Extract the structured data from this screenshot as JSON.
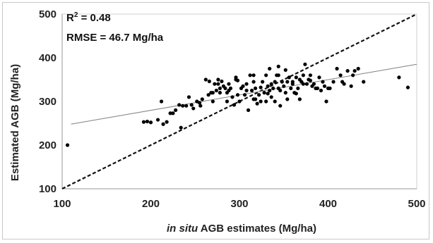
{
  "chart_data": {
    "type": "scatter",
    "xlabel_italic": "in situ",
    "xlabel_rest": " AGB estimates (Mg/ha)",
    "ylabel": "Estimated AGB (Mg/ha)",
    "xlim": [
      100,
      500
    ],
    "ylim": [
      100,
      500
    ],
    "xticks": [
      100,
      200,
      300,
      400,
      500
    ],
    "yticks": [
      100,
      200,
      300,
      400,
      500
    ],
    "annotations": {
      "r2_prefix": "R",
      "r2_sup": "2",
      "r2_value": " = 0.48",
      "rmse": "RMSE = 46.7 Mg/ha"
    },
    "one_to_one_line": {
      "x": [
        100,
        500
      ],
      "y": [
        100,
        500
      ],
      "style": "dashed"
    },
    "regression_line": {
      "x": [
        110,
        500
      ],
      "y": [
        248,
        385
      ],
      "style": "solid"
    },
    "points": [
      [
        106,
        200
      ],
      [
        192,
        253
      ],
      [
        196,
        254
      ],
      [
        200,
        252
      ],
      [
        208,
        258
      ],
      [
        212,
        300
      ],
      [
        214,
        248
      ],
      [
        218,
        253
      ],
      [
        222,
        273
      ],
      [
        225,
        273
      ],
      [
        228,
        280
      ],
      [
        232,
        292
      ],
      [
        234,
        240
      ],
      [
        236,
        290
      ],
      [
        240,
        290
      ],
      [
        243,
        310
      ],
      [
        246,
        292
      ],
      [
        248,
        284
      ],
      [
        252,
        300
      ],
      [
        255,
        297
      ],
      [
        258,
        305
      ],
      [
        262,
        350
      ],
      [
        265,
        315
      ],
      [
        268,
        320
      ],
      [
        270,
        300
      ],
      [
        272,
        340
      ],
      [
        274,
        325
      ],
      [
        276,
        350
      ],
      [
        278,
        320
      ],
      [
        280,
        346
      ],
      [
        282,
        335
      ],
      [
        284,
        330
      ],
      [
        286,
        300
      ],
      [
        288,
        325
      ],
      [
        290,
        330
      ],
      [
        292,
        310
      ],
      [
        294,
        292
      ],
      [
        296,
        355
      ],
      [
        298,
        315
      ],
      [
        300,
        300
      ],
      [
        302,
        330
      ],
      [
        304,
        335
      ],
      [
        306,
        315
      ],
      [
        308,
        340
      ],
      [
        310,
        280
      ],
      [
        312,
        360
      ],
      [
        314,
        325
      ],
      [
        316,
        305
      ],
      [
        318,
        330
      ],
      [
        320,
        295
      ],
      [
        322,
        315
      ],
      [
        324,
        300
      ],
      [
        326,
        345
      ],
      [
        328,
        320
      ],
      [
        330,
        300
      ],
      [
        332,
        335
      ],
      [
        334,
        325
      ],
      [
        336,
        310
      ],
      [
        338,
        330
      ],
      [
        340,
        300
      ],
      [
        342,
        360
      ],
      [
        344,
        330
      ],
      [
        346,
        290
      ],
      [
        348,
        345
      ],
      [
        350,
        335
      ],
      [
        352,
        320
      ],
      [
        354,
        345
      ],
      [
        356,
        355
      ],
      [
        358,
        330
      ],
      [
        360,
        340
      ],
      [
        362,
        320
      ],
      [
        364,
        355
      ],
      [
        366,
        330
      ],
      [
        368,
        305
      ],
      [
        370,
        345
      ],
      [
        372,
        360
      ],
      [
        374,
        385
      ],
      [
        376,
        340
      ],
      [
        378,
        350
      ],
      [
        380,
        360
      ],
      [
        382,
        335
      ],
      [
        384,
        340
      ],
      [
        386,
        330
      ],
      [
        388,
        330
      ],
      [
        390,
        355
      ],
      [
        392,
        325
      ],
      [
        394,
        345
      ],
      [
        396,
        335
      ],
      [
        398,
        300
      ],
      [
        402,
        330
      ],
      [
        406,
        345
      ],
      [
        410,
        375
      ],
      [
        414,
        360
      ],
      [
        418,
        340
      ],
      [
        422,
        370
      ],
      [
        426,
        335
      ],
      [
        430,
        370
      ],
      [
        434,
        375
      ],
      [
        440,
        345
      ],
      [
        480,
        355
      ],
      [
        490,
        332
      ],
      [
        330,
        360
      ],
      [
        336,
        340
      ],
      [
        344,
        360
      ],
      [
        352,
        372
      ],
      [
        360,
        345
      ],
      [
        368,
        350
      ],
      [
        340,
        345
      ],
      [
        324,
        332
      ],
      [
        316,
        345
      ],
      [
        296,
        350
      ],
      [
        286,
        320
      ],
      [
        276,
        340
      ],
      [
        266,
        346
      ],
      [
        256,
        290
      ],
      [
        316,
        360
      ],
      [
        332,
        318
      ],
      [
        346,
        325
      ],
      [
        354,
        305
      ],
      [
        380,
        348
      ],
      [
        400,
        330
      ],
      [
        416,
        345
      ],
      [
        428,
        360
      ],
      [
        364,
        318
      ],
      [
        372,
        340
      ],
      [
        334,
        375
      ],
      [
        344,
        380
      ],
      [
        318,
        305
      ],
      [
        308,
        325
      ],
      [
        298,
        348
      ],
      [
        288,
        340
      ],
      [
        278,
        330
      ],
      [
        270,
        320
      ]
    ]
  }
}
